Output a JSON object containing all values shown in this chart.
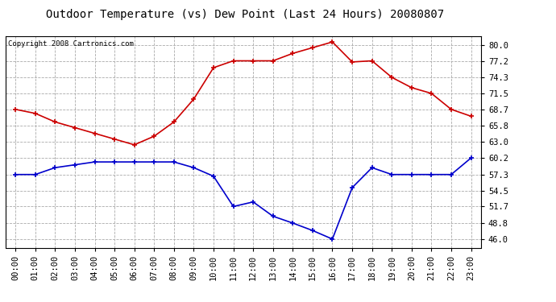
{
  "title": "Outdoor Temperature (vs) Dew Point (Last 24 Hours) 20080807",
  "copyright": "Copyright 2008 Cartronics.com",
  "hours": [
    "00:00",
    "01:00",
    "02:00",
    "03:00",
    "04:00",
    "05:00",
    "06:00",
    "07:00",
    "08:00",
    "09:00",
    "10:00",
    "11:00",
    "12:00",
    "13:00",
    "14:00",
    "15:00",
    "16:00",
    "17:00",
    "18:00",
    "19:00",
    "20:00",
    "21:00",
    "22:00",
    "23:00"
  ],
  "temp": [
    68.7,
    68.0,
    66.5,
    65.5,
    64.5,
    63.5,
    62.5,
    64.0,
    66.5,
    70.5,
    76.0,
    77.2,
    77.2,
    77.2,
    78.5,
    79.5,
    80.5,
    77.0,
    77.2,
    74.3,
    72.5,
    71.5,
    68.7,
    67.5
  ],
  "dew": [
    57.3,
    57.3,
    58.5,
    59.0,
    59.5,
    59.5,
    59.5,
    59.5,
    59.5,
    58.5,
    57.0,
    51.7,
    52.5,
    50.0,
    48.8,
    47.5,
    46.0,
    55.0,
    58.5,
    57.3,
    57.3,
    57.3,
    57.3,
    60.2
  ],
  "temp_color": "#cc0000",
  "dew_color": "#0000cc",
  "bg_color": "#ffffff",
  "plot_bg": "#ffffff",
  "grid_color": "#aaaaaa",
  "yticks": [
    46.0,
    48.8,
    51.7,
    54.5,
    57.3,
    60.2,
    63.0,
    65.8,
    68.7,
    71.5,
    74.3,
    77.2,
    80.0
  ],
  "ylim": [
    44.5,
    81.5
  ],
  "title_fontsize": 10,
  "copyright_fontsize": 6.5,
  "tick_fontsize": 7.5
}
